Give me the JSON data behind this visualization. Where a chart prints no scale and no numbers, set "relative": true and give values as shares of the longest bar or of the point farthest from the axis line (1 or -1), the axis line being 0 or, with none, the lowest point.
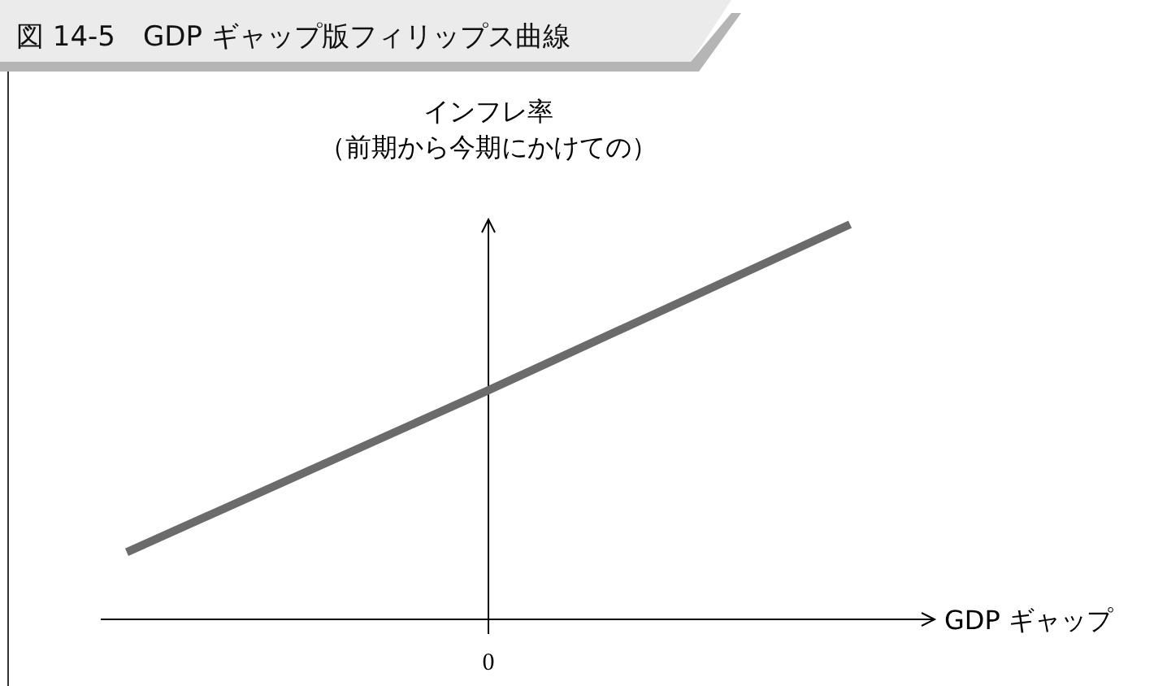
{
  "chart_data": {
    "type": "line",
    "title": "図 14-5　GDP ギャップ版フィリップス曲線",
    "xlabel": "GDP ギャップ",
    "ylabel": "インフレ率",
    "annotations": [
      "（前期から今期にかけての）",
      "0"
    ],
    "relative": true,
    "categories": [
      null,
      null,
      null
    ],
    "series": [
      {
        "color": "#6b6b6b",
        "values": [
          0.17,
          0.58,
          1
        ]
      }
    ]
  }
}
